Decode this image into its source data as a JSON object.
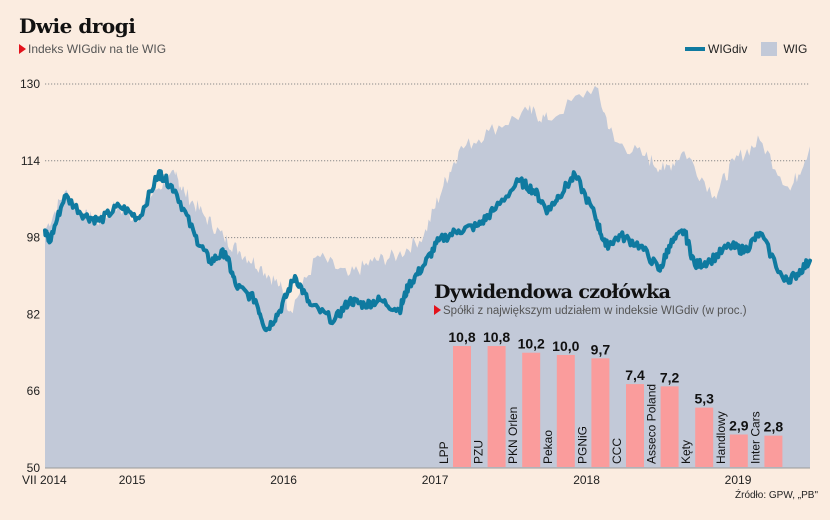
{
  "header": {
    "title": "Dwie drogi",
    "subtitle": "Indeks WIGdiv na tle WIG"
  },
  "legend": {
    "wigdiv": "WIGdiv",
    "wig": "WIG"
  },
  "source": "Źródło: GPW, „PB\"",
  "colors": {
    "wigdiv": "#0f7aa0",
    "wig": "#c2c9d8",
    "bars": "#fa9c9c",
    "background": "#fbece0",
    "accent": "#e3121b"
  },
  "chart_data": [
    {
      "type": "area",
      "title": "Dwie drogi",
      "subtitle": "Indeks WIGdiv na tle WIG",
      "xlabel": "",
      "ylabel": "",
      "ylim": [
        50,
        130
      ],
      "yticks": [
        130,
        114,
        98,
        82,
        66,
        50
      ],
      "xlim": [
        2014.5,
        2019.55
      ],
      "xticks": [
        {
          "label": "VII 2014",
          "value": 2014.5
        },
        {
          "label": "2015",
          "value": 2015.0
        },
        {
          "label": "2016",
          "value": 2016.0
        },
        {
          "label": "2017",
          "value": 2017.0
        },
        {
          "label": "2018",
          "value": 2018.0
        },
        {
          "label": "2019",
          "value": 2019.0
        }
      ],
      "grid": true,
      "legend_position": "top-right",
      "series": [
        {
          "name": "WIG",
          "kind": "area",
          "x": [
            2014.5,
            2014.63,
            2014.76,
            2014.86,
            2014.96,
            2015.1,
            2015.23,
            2015.36,
            2015.42,
            2015.55,
            2015.68,
            2015.79,
            2015.92,
            2016.05,
            2016.12,
            2016.3,
            2016.5,
            2016.66,
            2016.83,
            2017.0,
            2017.13,
            2017.23,
            2017.43,
            2017.69,
            2017.82,
            2018.13,
            2018.26,
            2018.46,
            2018.59,
            2018.72,
            2018.92,
            2019.05,
            2019.22,
            2019.42,
            2019.55
          ],
          "values": [
            99.5,
            107.5,
            102.5,
            101.5,
            104.5,
            102,
            108,
            111,
            107.5,
            102.6,
            98,
            95,
            92,
            88,
            82.8,
            94.3,
            90,
            93,
            94.3,
            98.4,
            108.8,
            116,
            120.2,
            124.4,
            122.5,
            129.6,
            118,
            115,
            112,
            116,
            106.7,
            114,
            118.2,
            107.8,
            117
          ]
        },
        {
          "name": "WIGdiv",
          "kind": "line",
          "x": [
            2014.5,
            2014.53,
            2014.63,
            2014.76,
            2014.86,
            2014.99,
            2015.12,
            2015.25,
            2015.27,
            2015.36,
            2015.49,
            2015.59,
            2015.69,
            2015.76,
            2015.89,
            2015.96,
            2016.05,
            2016.15,
            2016.25,
            2016.41,
            2016.51,
            2016.61,
            2016.71,
            2016.84,
            2016.9,
            2017.0,
            2017.1,
            2017.23,
            2017.36,
            2017.46,
            2017.63,
            2017.73,
            2017.82,
            2017.89,
            2018.0,
            2018.13,
            2018.2,
            2018.3,
            2018.43,
            2018.56,
            2018.62,
            2018.72,
            2018.79,
            2018.89,
            2019.02,
            2019.12,
            2019.22,
            2019.38,
            2019.45,
            2019.55
          ],
          "values": [
            99.5,
            97,
            106.7,
            102.6,
            101.5,
            104.6,
            102,
            111.3,
            111,
            107.8,
            98.4,
            93,
            95,
            88,
            85,
            78.7,
            82.8,
            90,
            84,
            80.7,
            84.9,
            84,
            85,
            82.8,
            88,
            92.2,
            97.4,
            99.5,
            100.5,
            103.6,
            109.8,
            107.8,
            103.6,
            106.7,
            111,
            102.6,
            96.3,
            98.4,
            96.3,
            91.1,
            96.3,
            99.5,
            92.2,
            93.2,
            96.3,
            95.3,
            99,
            89,
            90,
            93.2
          ]
        }
      ]
    },
    {
      "type": "bar",
      "title": "Dywidendowa czołówka",
      "subtitle": "Spółki z największym udziałem w indeksie WIGdiv (w proc.)",
      "xlabel": "",
      "ylabel": "",
      "ylim": [
        0,
        10.8
      ],
      "grid": false,
      "categories": [
        "LPP",
        "PZU",
        "PKN Orlen",
        "Pekao",
        "PGNiG",
        "CCC",
        "Asseco Poland",
        "Kęty",
        "Handlowy",
        "Inter Cars"
      ],
      "values": [
        10.8,
        10.8,
        10.2,
        10.0,
        9.7,
        7.4,
        7.2,
        5.3,
        2.9,
        2.8
      ],
      "value_labels": [
        "10,8",
        "10,8",
        "10,2",
        "10,0",
        "9,7",
        "7,4",
        "7,2",
        "5,3",
        "2,9",
        "2,8"
      ]
    }
  ]
}
